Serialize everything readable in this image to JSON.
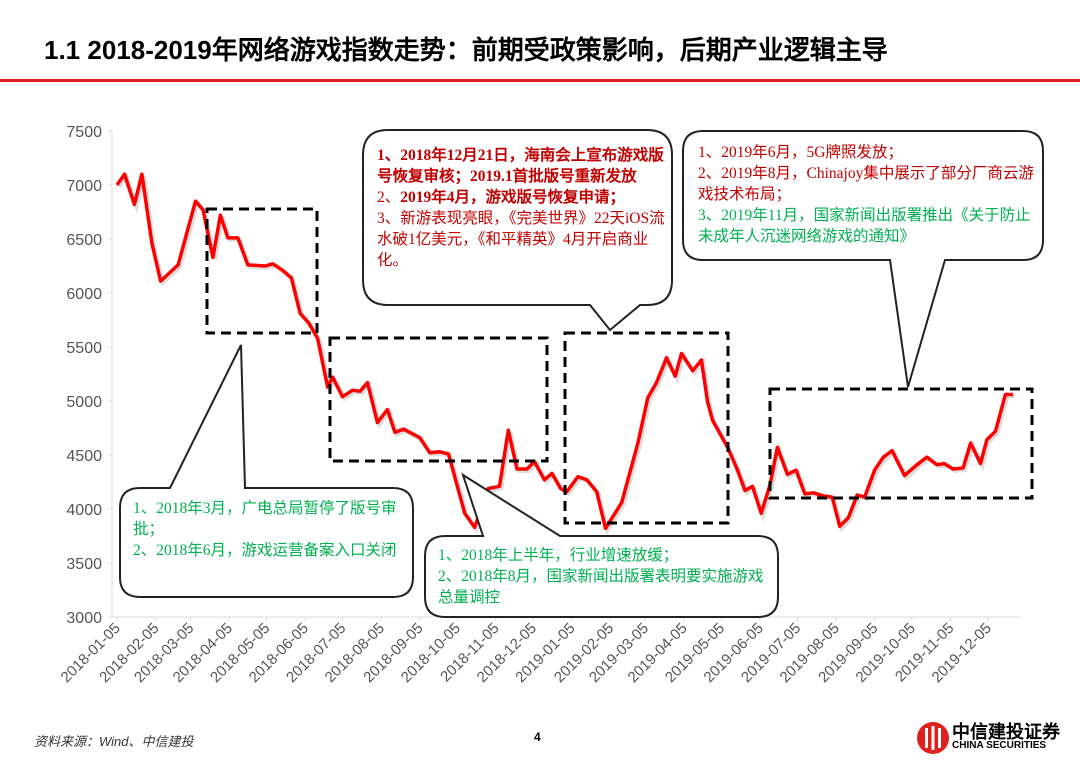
{
  "title": "1.1 2018-2019年网络游戏指数走势：前期受政策影响，后期产业逻辑主导",
  "colors": {
    "accent": "#e0201c",
    "line": "#ff0000",
    "callout_red": "#c00000",
    "callout_green": "#00b050"
  },
  "chart_data": {
    "type": "line",
    "title": "",
    "xlabel": "",
    "ylabel": "",
    "ylim": [
      3000,
      7500
    ],
    "yticks": [
      "3000",
      "3500",
      "4000",
      "4500",
      "5000",
      "5500",
      "6000",
      "6500",
      "7000",
      "7500"
    ],
    "xticks": [
      "2018-01-05",
      "2018-02-05",
      "2018-03-05",
      "2018-04-05",
      "2018-05-05",
      "2018-06-05",
      "2018-07-05",
      "2018-08-05",
      "2018-09-05",
      "2018-10-05",
      "2018-11-05",
      "2018-12-05",
      "2019-01-05",
      "2019-02-05",
      "2019-03-05",
      "2019-04-05",
      "2019-05-05",
      "2019-06-05",
      "2019-07-05",
      "2019-08-05",
      "2019-09-05",
      "2019-10-05",
      "2019-11-05",
      "2019-12-05"
    ],
    "grid": false,
    "series": [
      {
        "x": [
          "2018-01-05",
          "2018-01-11",
          "2018-01-19",
          "2018-01-25",
          "2018-02-02",
          "2018-02-09",
          "2018-02-23",
          "2018-03-09",
          "2018-03-15",
          "2018-03-23",
          "2018-03-29",
          "2018-04-04",
          "2018-04-12",
          "2018-04-20",
          "2018-05-04",
          "2018-05-10",
          "2018-05-18",
          "2018-05-25",
          "2018-06-01",
          "2018-06-08",
          "2018-06-15",
          "2018-06-23",
          "2018-06-27",
          "2018-07-05",
          "2018-07-13",
          "2018-07-19",
          "2018-07-25",
          "2018-08-02",
          "2018-08-10",
          "2018-08-16",
          "2018-08-23",
          "2018-09-05",
          "2018-09-13",
          "2018-09-21",
          "2018-09-28",
          "2018-10-11",
          "2018-10-19",
          "2018-10-30",
          "2018-11-08",
          "2018-11-15",
          "2018-11-22",
          "2018-11-30",
          "2018-12-06",
          "2018-12-14",
          "2018-12-20",
          "2018-12-27",
          "2019-01-01",
          "2019-01-10",
          "2019-01-17",
          "2019-01-25",
          "2019-02-01",
          "2019-02-14",
          "2019-02-27",
          "2019-03-07",
          "2019-03-14",
          "2019-03-22",
          "2019-03-29",
          "2019-04-03",
          "2019-04-12",
          "2019-04-19",
          "2019-04-24",
          "2019-04-28",
          "2019-05-10",
          "2019-05-18",
          "2019-05-24",
          "2019-05-30",
          "2019-06-06",
          "2019-06-13",
          "2019-06-19",
          "2019-06-27",
          "2019-07-04",
          "2019-07-11",
          "2019-07-18",
          "2019-07-26",
          "2019-08-02",
          "2019-08-08",
          "2019-08-15",
          "2019-08-22",
          "2019-08-28",
          "2019-09-05",
          "2019-09-12",
          "2019-09-19",
          "2019-09-29",
          "2019-10-09",
          "2019-10-17",
          "2019-10-25",
          "2019-10-31",
          "2019-11-07",
          "2019-11-15",
          "2019-11-21",
          "2019-11-29",
          "2019-12-04",
          "2019-12-11",
          "2019-12-19",
          "2019-12-25"
        ],
        "values": [
          7000,
          7100,
          6820,
          7100,
          6460,
          6110,
          6260,
          6850,
          6770,
          6330,
          6720,
          6510,
          6510,
          6260,
          6250,
          6270,
          6210,
          6140,
          5810,
          5720,
          5580,
          5130,
          5220,
          5040,
          5100,
          5090,
          5170,
          4800,
          4920,
          4710,
          4740,
          4660,
          4520,
          4530,
          4510,
          3960,
          3830,
          4190,
          4210,
          4730,
          4370,
          4370,
          4440,
          4270,
          4330,
          4190,
          4160,
          4300,
          4270,
          4160,
          3820,
          4060,
          4610,
          5030,
          5170,
          5400,
          5230,
          5440,
          5280,
          5380,
          4990,
          4820,
          4570,
          4360,
          4170,
          4210,
          3960,
          4220,
          4570,
          4320,
          4360,
          4140,
          4150,
          4120,
          4110,
          3840,
          3920,
          4130,
          4110,
          4360,
          4480,
          4540,
          4310,
          4410,
          4480,
          4410,
          4420,
          4370,
          4380,
          4610,
          4420,
          4640,
          4720,
          5060,
          5060
        ]
      }
    ]
  },
  "callouts": {
    "a": {
      "line1": "1、2018年3月，广电总局暂停了版号审批；",
      "line2": "2、2018年6月，游戏运营备案入口关闭"
    },
    "b": {
      "line1": "1、2018年上半年，行业增速放缓；",
      "line2": "2、2018年8月，国家新闻出版署表明要实施游戏总量调控"
    },
    "c": {
      "line1": "1、2018年12月21日，海南会上宣布游戏版号恢复审核；2019.1首批版号重新发放",
      "line2_prefix": "2、",
      "line2": "2019年4月，游戏版号恢复申请；",
      "line3": "3、新游表现亮眼，《完美世界》22天iOS流水破1亿美元，《和平精英》4月开启商业化。"
    },
    "d": {
      "line1": "1、2019年6月，5G牌照发放；",
      "line2": "2、2019年8月，Chinajoy集中展示了部分厂商云游戏技术布局；",
      "line3": "3、2019年11月，国家新闻出版署推出《关于防止未成年人沉迷网络游戏的通知》"
    }
  },
  "footer": {
    "source": "资料来源：Wind、中信建投",
    "page": "4"
  },
  "logo": {
    "cn": "中信建投证券",
    "en": "CHINA SECURITIES"
  }
}
